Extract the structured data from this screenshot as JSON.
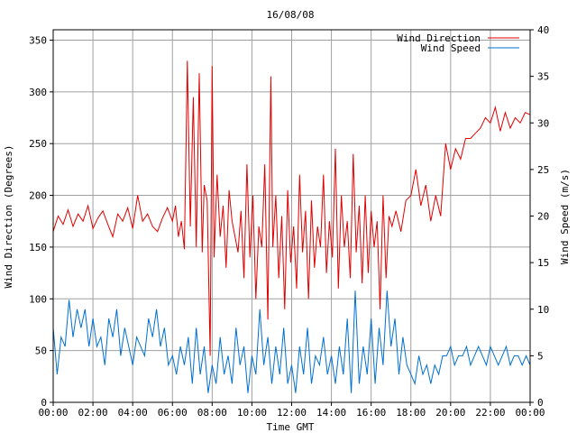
{
  "chart_data": {
    "type": "line",
    "title": "16/08/08",
    "xlabel": "Time GMT",
    "ylabel_left": "Wind Direction (Degrees)",
    "ylabel_right": "Wind Speed (m/s)",
    "x_ticks": [
      "00:00",
      "02:00",
      "04:00",
      "06:00",
      "08:00",
      "10:00",
      "12:00",
      "14:00",
      "16:00",
      "18:00",
      "20:00",
      "22:00",
      "00:00"
    ],
    "ylim_left": [
      0,
      360
    ],
    "y_ticks_left": [
      0,
      50,
      100,
      150,
      200,
      250,
      300,
      350
    ],
    "ylim_right": [
      0,
      40
    ],
    "y_ticks_right": [
      0,
      5,
      10,
      15,
      20,
      25,
      30,
      35,
      40
    ],
    "grid": true,
    "legend_position": "top-right",
    "series": [
      {
        "name": "Wind Direction",
        "axis": "left",
        "color": "#e00000",
        "x_hours": [
          0,
          0.25,
          0.5,
          0.75,
          1,
          1.25,
          1.5,
          1.75,
          2,
          2.25,
          2.5,
          2.75,
          3,
          3.25,
          3.5,
          3.75,
          4,
          4.25,
          4.5,
          4.75,
          5,
          5.25,
          5.5,
          5.75,
          6,
          6.15,
          6.3,
          6.45,
          6.6,
          6.75,
          6.9,
          7.05,
          7.2,
          7.35,
          7.5,
          7.6,
          7.75,
          7.9,
          8,
          8.1,
          8.25,
          8.4,
          8.55,
          8.7,
          8.85,
          9,
          9.15,
          9.3,
          9.45,
          9.6,
          9.75,
          9.9,
          10.05,
          10.2,
          10.35,
          10.5,
          10.65,
          10.8,
          10.95,
          11.05,
          11.2,
          11.35,
          11.5,
          11.65,
          11.8,
          11.95,
          12.1,
          12.25,
          12.4,
          12.55,
          12.7,
          12.85,
          13,
          13.15,
          13.3,
          13.45,
          13.6,
          13.75,
          13.9,
          14.05,
          14.2,
          14.35,
          14.5,
          14.65,
          14.8,
          14.95,
          15.1,
          15.25,
          15.4,
          15.55,
          15.7,
          15.85,
          16,
          16.15,
          16.3,
          16.45,
          16.6,
          16.75,
          16.9,
          17.05,
          17.25,
          17.5,
          17.75,
          18,
          18.25,
          18.5,
          18.75,
          19,
          19.25,
          19.5,
          19.75,
          20,
          20.25,
          20.5,
          20.75,
          21,
          21.25,
          21.5,
          21.75,
          22,
          22.25,
          22.5,
          22.75,
          23,
          23.25,
          23.5,
          23.75,
          24
        ],
        "values": [
          165,
          180,
          172,
          186,
          170,
          182,
          175,
          190,
          168,
          178,
          185,
          172,
          160,
          182,
          175,
          188,
          168,
          200,
          175,
          182,
          170,
          165,
          178,
          188,
          175,
          190,
          160,
          175,
          148,
          330,
          170,
          295,
          150,
          318,
          145,
          210,
          195,
          45,
          325,
          140,
          220,
          160,
          190,
          130,
          205,
          175,
          160,
          145,
          185,
          120,
          230,
          140,
          200,
          100,
          170,
          150,
          230,
          80,
          315,
          150,
          200,
          120,
          180,
          90,
          205,
          135,
          170,
          110,
          220,
          145,
          185,
          100,
          195,
          130,
          170,
          150,
          220,
          125,
          175,
          140,
          245,
          110,
          200,
          150,
          175,
          120,
          240,
          145,
          190,
          115,
          200,
          125,
          185,
          150,
          175,
          90,
          200,
          120,
          180,
          170,
          185,
          165,
          195,
          200,
          225,
          190,
          210,
          175,
          200,
          180,
          250,
          225,
          245,
          235,
          255,
          255,
          260,
          265,
          275,
          270,
          285,
          262,
          280,
          265,
          275,
          270,
          280,
          278
        ]
      },
      {
        "name": "Wind Speed",
        "axis": "right",
        "color": "#0070d0",
        "x_hours": [
          0,
          0.2,
          0.4,
          0.6,
          0.8,
          1,
          1.2,
          1.4,
          1.6,
          1.8,
          2,
          2.2,
          2.4,
          2.6,
          2.8,
          3,
          3.2,
          3.4,
          3.6,
          3.8,
          4,
          4.2,
          4.4,
          4.6,
          4.8,
          5,
          5.2,
          5.4,
          5.6,
          5.8,
          6,
          6.2,
          6.4,
          6.6,
          6.8,
          7,
          7.2,
          7.4,
          7.6,
          7.8,
          8,
          8.2,
          8.4,
          8.6,
          8.8,
          9,
          9.2,
          9.4,
          9.6,
          9.8,
          10,
          10.2,
          10.4,
          10.6,
          10.8,
          11,
          11.2,
          11.4,
          11.6,
          11.8,
          12,
          12.2,
          12.4,
          12.6,
          12.8,
          13,
          13.2,
          13.4,
          13.6,
          13.8,
          14,
          14.2,
          14.4,
          14.6,
          14.8,
          15,
          15.2,
          15.4,
          15.6,
          15.8,
          16,
          16.2,
          16.4,
          16.6,
          16.8,
          17,
          17.2,
          17.4,
          17.6,
          17.8,
          18,
          18.2,
          18.4,
          18.6,
          18.8,
          19,
          19.2,
          19.4,
          19.6,
          19.8,
          20,
          20.2,
          20.4,
          20.6,
          20.8,
          21,
          21.2,
          21.4,
          21.6,
          21.8,
          22,
          22.2,
          22.4,
          22.6,
          22.8,
          23,
          23.2,
          23.4,
          23.6,
          23.8,
          24
        ],
        "values": [
          8,
          3,
          7,
          6,
          11,
          7,
          10,
          8,
          10,
          6,
          9,
          6,
          7,
          4,
          9,
          7,
          10,
          5,
          8,
          6,
          4,
          7,
          6,
          5,
          9,
          7,
          10,
          6,
          8,
          4,
          5,
          3,
          6,
          4,
          7,
          2,
          8,
          3,
          6,
          1,
          4,
          2,
          7,
          3,
          5,
          2,
          8,
          4,
          6,
          1,
          5,
          3,
          10,
          4,
          7,
          2,
          6,
          3,
          8,
          2,
          4,
          1,
          6,
          3,
          8,
          2,
          5,
          4,
          7,
          3,
          5,
          2,
          6,
          3,
          9,
          1,
          12,
          2,
          6,
          3,
          9,
          2,
          8,
          4,
          12,
          6,
          9,
          3,
          7,
          4,
          3,
          2,
          5,
          3,
          4,
          2,
          4,
          3,
          5,
          5,
          6,
          4,
          5,
          5,
          6,
          4,
          5,
          6,
          5,
          4,
          6,
          5,
          4,
          5,
          6,
          4,
          5,
          5,
          4,
          5,
          4
        ]
      }
    ]
  }
}
